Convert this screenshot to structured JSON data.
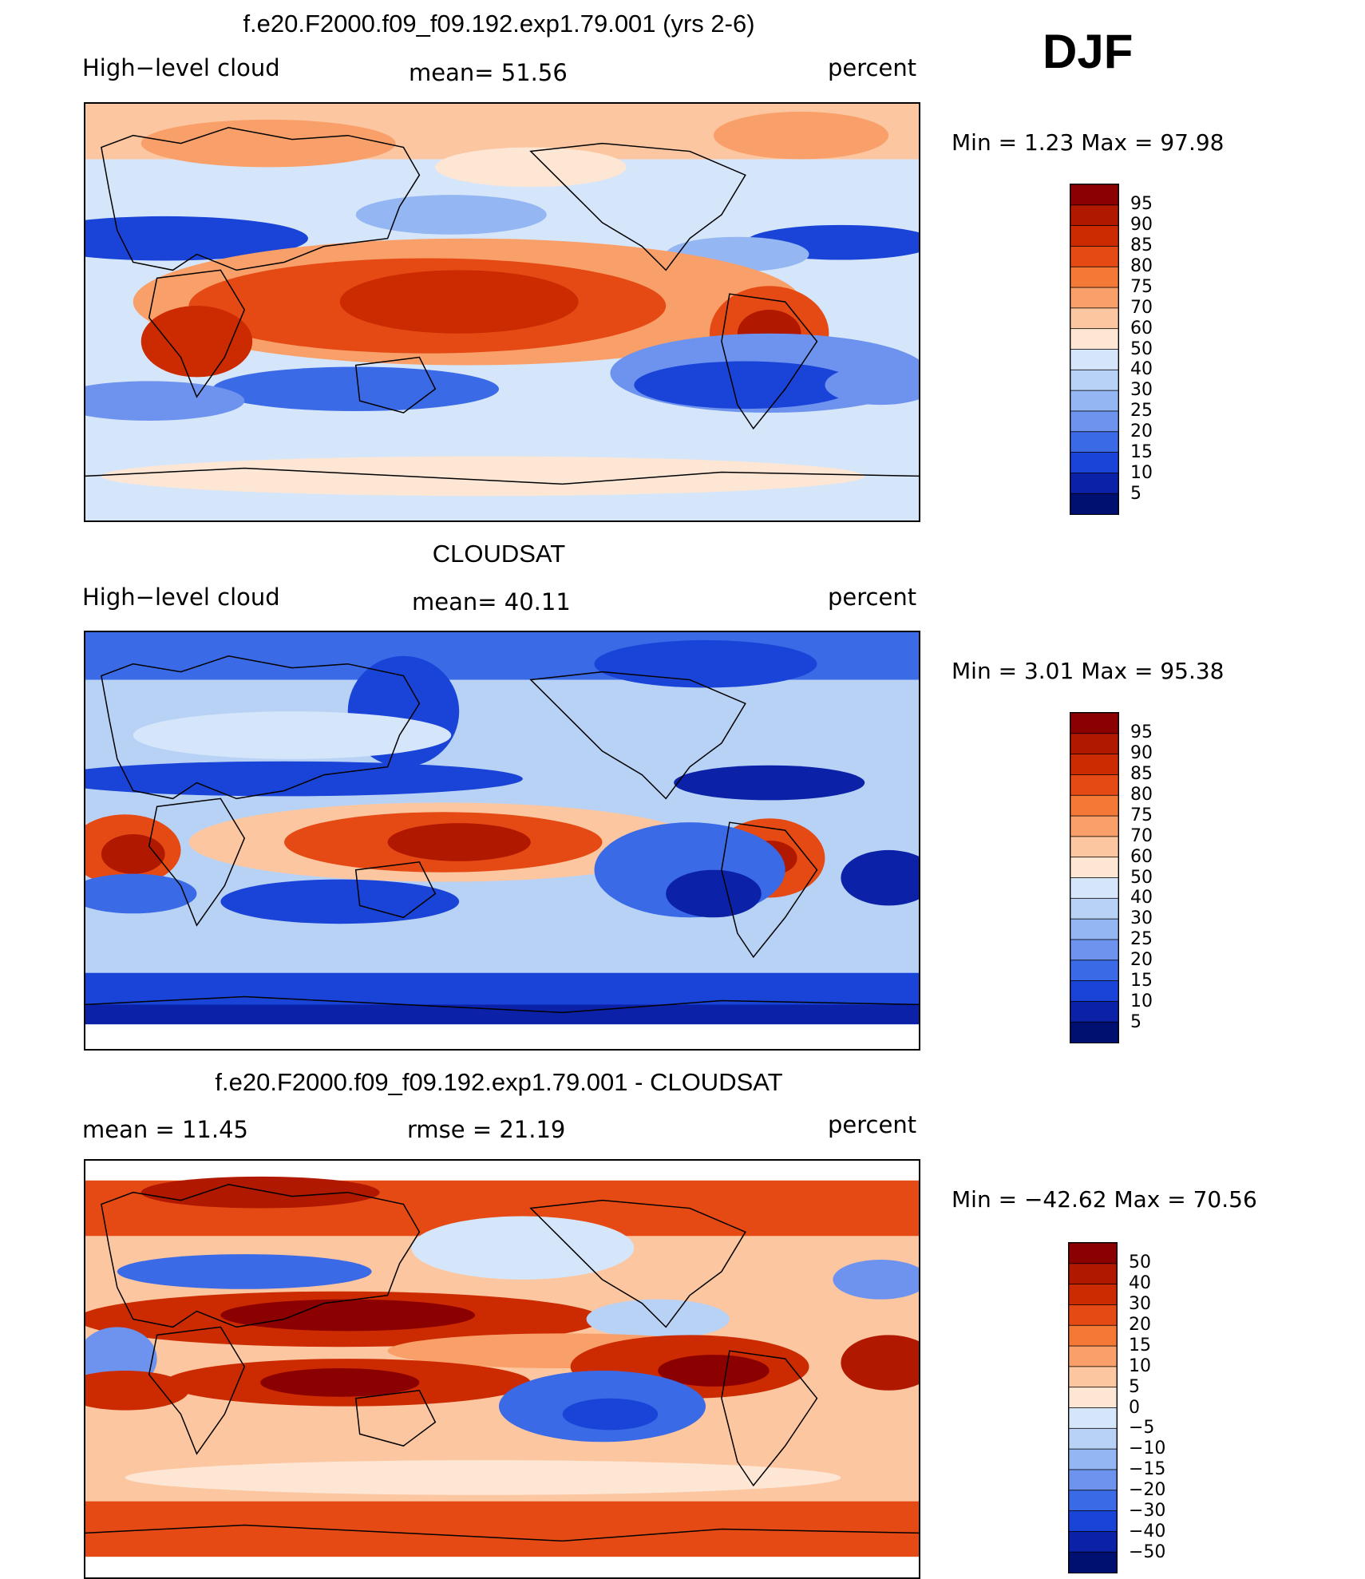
{
  "season": "DJF",
  "panels": [
    {
      "id": "model",
      "title": "f.e20.F2000.f09_f09.192.exp1.79.001 (yrs 2-6)",
      "variable": "High−level cloud",
      "stat": "mean=   51.56",
      "units": "percent",
      "minmax": "Min  =     1.23  Max  =    97.98",
      "levels": [
        "95",
        "90",
        "85",
        "80",
        "75",
        "70",
        "60",
        "50",
        "40",
        "30",
        "25",
        "20",
        "15",
        "10",
        "5"
      ],
      "colors": [
        "#8b0000",
        "#b01800",
        "#cc2a00",
        "#e64a14",
        "#f47836",
        "#f9a06a",
        "#fcc6a0",
        "#fde6d4",
        "#d6e6fa",
        "#b8d2f6",
        "#94b6f2",
        "#6d93ee",
        "#3a6ae6",
        "#1a44d8",
        "#0b22a8",
        "#001070"
      ]
    },
    {
      "id": "obs",
      "title": "CLOUDSAT",
      "variable": "High−level cloud",
      "stat": "mean=   40.11",
      "units": "percent",
      "minmax": "Min  =     3.01  Max  =    95.38",
      "levels": [
        "95",
        "90",
        "85",
        "80",
        "75",
        "70",
        "60",
        "50",
        "40",
        "30",
        "25",
        "20",
        "15",
        "10",
        "5"
      ],
      "colors": [
        "#8b0000",
        "#b01800",
        "#cc2a00",
        "#e64a14",
        "#f47836",
        "#f9a06a",
        "#fcc6a0",
        "#fde6d4",
        "#d6e6fa",
        "#b8d2f6",
        "#94b6f2",
        "#6d93ee",
        "#3a6ae6",
        "#1a44d8",
        "#0b22a8",
        "#001070"
      ]
    },
    {
      "id": "diff",
      "title": "f.e20.F2000.f09_f09.192.exp1.79.001 - CLOUDSAT",
      "variable": "mean  =    11.45",
      "stat": "rmse  =    21.19",
      "units": "percent",
      "minmax": "Min  = −42.62  Max  =    70.56",
      "levels": [
        "50",
        "40",
        "30",
        "20",
        "15",
        "10",
        "5",
        "0",
        "−5",
        "−10",
        "−15",
        "−20",
        "−30",
        "−40",
        "−50"
      ],
      "colors": [
        "#8b0000",
        "#b01800",
        "#cc2a00",
        "#e64a14",
        "#f47836",
        "#f9a06a",
        "#fcc6a0",
        "#fde6d4",
        "#d6e6fa",
        "#b8d2f6",
        "#94b6f2",
        "#6d93ee",
        "#3a6ae6",
        "#1a44d8",
        "#0b22a8",
        "#001070"
      ]
    }
  ]
}
